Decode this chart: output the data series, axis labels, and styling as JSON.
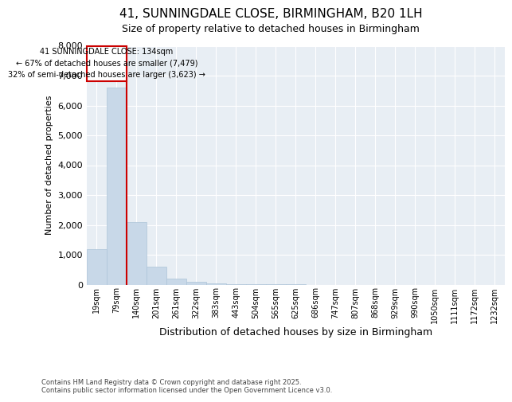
{
  "title": "41, SUNNINGDALE CLOSE, BIRMINGHAM, B20 1LH",
  "subtitle": "Size of property relative to detached houses in Birmingham",
  "xlabel": "Distribution of detached houses by size in Birmingham",
  "ylabel": "Number of detached properties",
  "categories": [
    "19sqm",
    "79sqm",
    "140sqm",
    "201sqm",
    "261sqm",
    "322sqm",
    "383sqm",
    "443sqm",
    "504sqm",
    "565sqm",
    "625sqm",
    "686sqm",
    "747sqm",
    "807sqm",
    "868sqm",
    "929sqm",
    "990sqm",
    "1050sqm",
    "1111sqm",
    "1172sqm",
    "1232sqm"
  ],
  "values": [
    1200,
    6600,
    2100,
    600,
    210,
    90,
    45,
    25,
    15,
    8,
    25,
    0,
    0,
    0,
    0,
    0,
    0,
    0,
    0,
    0,
    0
  ],
  "bar_color": "#c8d8e8",
  "bar_edge_color": "#adc4d8",
  "marker_index": 2,
  "marker_color": "#cc0000",
  "ylim": [
    0,
    8000
  ],
  "yticks": [
    0,
    1000,
    2000,
    3000,
    4000,
    5000,
    6000,
    7000,
    8000
  ],
  "annotation_text": "41 SUNNINGDALE CLOSE: 134sqm\n← 67% of detached houses are smaller (7,479)\n32% of semi-detached houses are larger (3,623) →",
  "annotation_box_color": "#cc0000",
  "annotation_text_color": "#000000",
  "footer": "Contains HM Land Registry data © Crown copyright and database right 2025.\nContains public sector information licensed under the Open Government Licence v3.0.",
  "background_color": "#ffffff",
  "plot_background_color": "#e8eef4",
  "grid_color": "#ffffff",
  "title_fontsize": 11,
  "subtitle_fontsize": 9,
  "tick_fontsize": 7,
  "ylabel_fontsize": 8,
  "xlabel_fontsize": 9
}
